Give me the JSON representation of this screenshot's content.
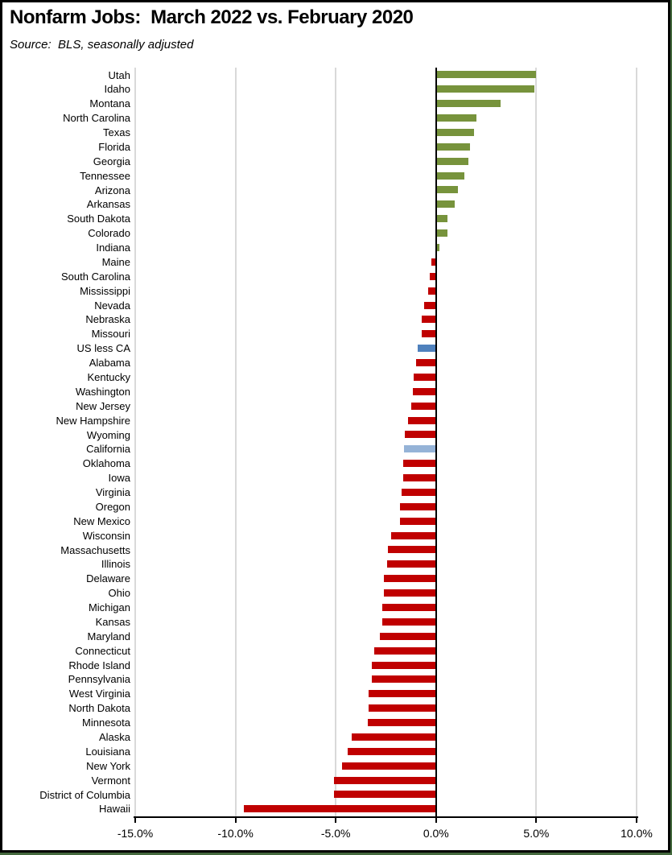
{
  "header": {
    "title": "Nonfarm Jobs:  March 2022 vs. February 2020",
    "source": "Source:  BLS, seasonally adjusted"
  },
  "chart_data": {
    "type": "bar",
    "orientation": "horizontal",
    "title": "Nonfarm Jobs:  March 2022 vs. February 2020",
    "subtitle": "Source:  BLS, seasonally adjusted",
    "xlabel": "",
    "ylabel": "",
    "unit": "percent",
    "xlim": [
      -15.0,
      10.0
    ],
    "x_ticks": [
      -15,
      -10,
      -5,
      0,
      5,
      10
    ],
    "x_tick_labels": [
      "-15.0%",
      "-10.0%",
      "-5.0%",
      "0.0%",
      "5.0%",
      "10.0%"
    ],
    "grid": "vertical-gridlines-on",
    "legend": "none",
    "palette": {
      "green": "#77933C",
      "red": "#C00000",
      "blue": "#4F81BD",
      "lightblue": "#95B3D7",
      "gridline": "#D9D9D9",
      "axis": "#000000"
    },
    "points": [
      {
        "label": "Utah",
        "value": 5.0,
        "color": "green"
      },
      {
        "label": "Idaho",
        "value": 4.9,
        "color": "green"
      },
      {
        "label": "Montana",
        "value": 3.2,
        "color": "green"
      },
      {
        "label": "North Carolina",
        "value": 2.0,
        "color": "green"
      },
      {
        "label": "Texas",
        "value": 1.9,
        "color": "green"
      },
      {
        "label": "Florida",
        "value": 1.7,
        "color": "green"
      },
      {
        "label": "Georgia",
        "value": 1.6,
        "color": "green"
      },
      {
        "label": "Tennessee",
        "value": 1.4,
        "color": "green"
      },
      {
        "label": "Arizona",
        "value": 1.1,
        "color": "green"
      },
      {
        "label": "Arkansas",
        "value": 0.95,
        "color": "green"
      },
      {
        "label": "South Dakota",
        "value": 0.55,
        "color": "green"
      },
      {
        "label": "Colorado",
        "value": 0.55,
        "color": "green"
      },
      {
        "label": "Indiana",
        "value": 0.15,
        "color": "green"
      },
      {
        "label": "Maine",
        "value": -0.25,
        "color": "red"
      },
      {
        "label": "South Carolina",
        "value": -0.3,
        "color": "red"
      },
      {
        "label": "Mississippi",
        "value": -0.4,
        "color": "red"
      },
      {
        "label": "Nevada",
        "value": -0.6,
        "color": "red"
      },
      {
        "label": "Nebraska",
        "value": -0.7,
        "color": "red"
      },
      {
        "label": "Missouri",
        "value": -0.7,
        "color": "red"
      },
      {
        "label": "US less CA",
        "value": -0.9,
        "color": "blue"
      },
      {
        "label": "Alabama",
        "value": -1.0,
        "color": "red"
      },
      {
        "label": "Kentucky",
        "value": -1.1,
        "color": "red"
      },
      {
        "label": "Washington",
        "value": -1.15,
        "color": "red"
      },
      {
        "label": "New Jersey",
        "value": -1.25,
        "color": "red"
      },
      {
        "label": "New Hampshire",
        "value": -1.4,
        "color": "red"
      },
      {
        "label": "Wyoming",
        "value": -1.55,
        "color": "red"
      },
      {
        "label": "California",
        "value": -1.6,
        "color": "lightblue"
      },
      {
        "label": "Oklahoma",
        "value": -1.65,
        "color": "red"
      },
      {
        "label": "Iowa",
        "value": -1.65,
        "color": "red"
      },
      {
        "label": "Virginia",
        "value": -1.7,
        "color": "red"
      },
      {
        "label": "Oregon",
        "value": -1.8,
        "color": "red"
      },
      {
        "label": "New Mexico",
        "value": -1.8,
        "color": "red"
      },
      {
        "label": "Wisconsin",
        "value": -2.25,
        "color": "red"
      },
      {
        "label": "Massachusetts",
        "value": -2.4,
        "color": "red"
      },
      {
        "label": "Illinois",
        "value": -2.45,
        "color": "red"
      },
      {
        "label": "Delaware",
        "value": -2.6,
        "color": "red"
      },
      {
        "label": "Ohio",
        "value": -2.6,
        "color": "red"
      },
      {
        "label": "Michigan",
        "value": -2.7,
        "color": "red"
      },
      {
        "label": "Kansas",
        "value": -2.7,
        "color": "red"
      },
      {
        "label": "Maryland",
        "value": -2.8,
        "color": "red"
      },
      {
        "label": "Connecticut",
        "value": -3.1,
        "color": "red"
      },
      {
        "label": "Rhode Island",
        "value": -3.2,
        "color": "red"
      },
      {
        "label": "Pennsylvania",
        "value": -3.2,
        "color": "red"
      },
      {
        "label": "West Virginia",
        "value": -3.35,
        "color": "red"
      },
      {
        "label": "North Dakota",
        "value": -3.35,
        "color": "red"
      },
      {
        "label": "Minnesota",
        "value": -3.4,
        "color": "red"
      },
      {
        "label": "Alaska",
        "value": -4.2,
        "color": "red"
      },
      {
        "label": "Louisiana",
        "value": -4.4,
        "color": "red"
      },
      {
        "label": "New York",
        "value": -4.7,
        "color": "red"
      },
      {
        "label": "Vermont",
        "value": -5.1,
        "color": "red"
      },
      {
        "label": "District of Columbia",
        "value": -5.1,
        "color": "red"
      },
      {
        "label": "Hawaii",
        "value": -9.6,
        "color": "red"
      }
    ]
  }
}
